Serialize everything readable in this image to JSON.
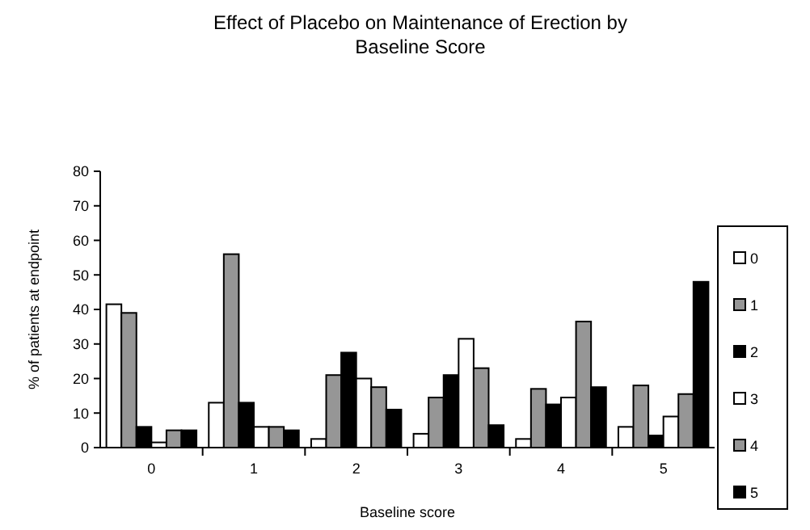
{
  "chart_data": {
    "type": "bar",
    "title": "Effect of Placebo on Maintenance of Erection by Baseline Score",
    "xlabel": "Baseline score",
    "ylabel": "% of patients at endpoint",
    "categories": [
      "0",
      "1",
      "2",
      "3",
      "4",
      "5"
    ],
    "series": [
      {
        "name": "0",
        "color": "#ffffff",
        "values": [
          41.5,
          13,
          2.5,
          4,
          2.5,
          6
        ]
      },
      {
        "name": "1",
        "color": "#969696",
        "values": [
          39,
          56,
          21,
          14.5,
          17,
          18
        ]
      },
      {
        "name": "2",
        "color": "#000000",
        "values": [
          6,
          13,
          27.5,
          21,
          12.5,
          3.5
        ]
      },
      {
        "name": "3",
        "color": "#ffffff",
        "values": [
          1.5,
          6,
          20,
          31.5,
          14.5,
          9
        ]
      },
      {
        "name": "4",
        "color": "#969696",
        "values": [
          5,
          6,
          17.5,
          23,
          36.5,
          15.5
        ]
      },
      {
        "name": "5",
        "color": "#000000",
        "values": [
          5,
          5,
          11,
          6.5,
          17.5,
          48
        ]
      }
    ],
    "ylim": [
      0,
      80
    ],
    "yticks": [
      0,
      10,
      20,
      30,
      40,
      50,
      60,
      70,
      80
    ],
    "grid": false,
    "legend": "right"
  }
}
